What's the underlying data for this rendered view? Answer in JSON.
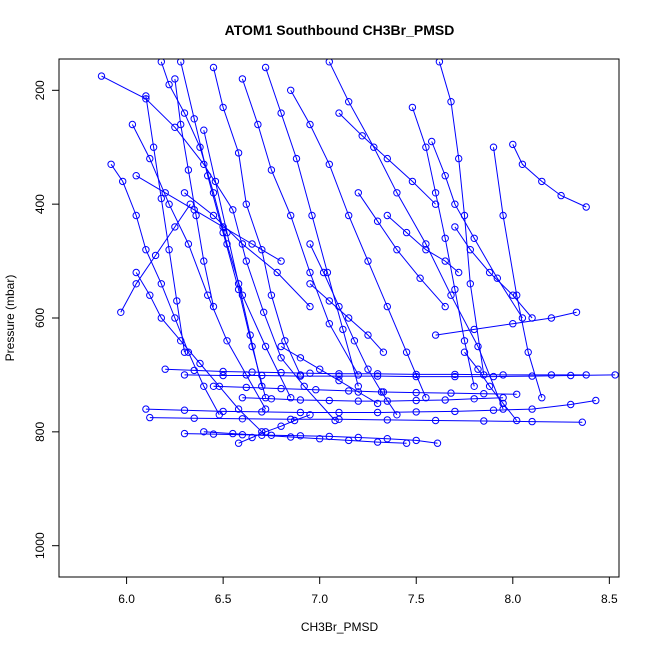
{
  "chart_data": {
    "type": "line",
    "title": "ATOM1 Southbound CH3Br_PMSD",
    "xlabel": "CH3Br_PMSD",
    "ylabel": "Pressure (mbar)",
    "xlim": [
      5.65,
      8.55
    ],
    "ylim": [
      1055,
      145
    ],
    "y_reversed": true,
    "x_ticks": [
      6.0,
      6.5,
      7.0,
      7.5,
      8.0,
      8.5
    ],
    "y_ticks": [
      200,
      400,
      600,
      800,
      1000
    ],
    "x_tick_labels": [
      "6.0",
      "6.5",
      "7.0",
      "7.5",
      "8.0",
      "8.5"
    ],
    "y_tick_labels": [
      "200",
      "400",
      "600",
      "800",
      "1000"
    ],
    "grid": false,
    "legend": "none",
    "series_color": "#0000ff",
    "series": [
      {
        "x": [
          5.87,
          6.1,
          6.25,
          6.4,
          6.55,
          6.62,
          6.71,
          6.8,
          6.92,
          7.08
        ],
        "y": [
          175,
          215,
          265,
          330,
          410,
          500,
          590,
          670,
          720,
          780
        ]
      },
      {
        "x": [
          6.18,
          6.22,
          6.3,
          6.38,
          6.45,
          6.52,
          6.6,
          6.72,
          6.85
        ],
        "y": [
          150,
          190,
          240,
          300,
          380,
          470,
          560,
          650,
          740
        ]
      },
      {
        "x": [
          6.45,
          6.5,
          6.58,
          6.62,
          6.7,
          6.75,
          6.82,
          6.9
        ],
        "y": [
          160,
          230,
          310,
          400,
          480,
          560,
          640,
          700
        ]
      },
      {
        "x": [
          5.92,
          5.98,
          6.05,
          6.1,
          6.18,
          6.25,
          6.32,
          6.4,
          6.48
        ],
        "y": [
          330,
          360,
          420,
          480,
          540,
          600,
          660,
          720,
          770
        ]
      },
      {
        "x": [
          6.6,
          6.68,
          6.75,
          6.85,
          6.95,
          7.05,
          7.2
        ],
        "y": [
          180,
          260,
          340,
          420,
          520,
          610,
          700
        ]
      },
      {
        "x": [
          6.85,
          6.95,
          7.05,
          7.15,
          7.25,
          7.35,
          7.45,
          7.55
        ],
        "y": [
          200,
          260,
          330,
          420,
          500,
          580,
          660,
          740
        ]
      },
      {
        "x": [
          7.05,
          7.15,
          7.28,
          7.4,
          7.55,
          7.68,
          7.82,
          7.95
        ],
        "y": [
          150,
          220,
          300,
          380,
          470,
          560,
          650,
          760
        ]
      },
      {
        "x": [
          7.48,
          7.55,
          7.6,
          7.65,
          7.7,
          7.75,
          7.8
        ],
        "y": [
          230,
          300,
          380,
          460,
          550,
          640,
          720
        ]
      },
      {
        "x": [
          7.62,
          7.68,
          7.72,
          7.75,
          7.78,
          7.85
        ],
        "y": [
          150,
          220,
          320,
          420,
          540,
          700
        ]
      },
      {
        "x": [
          6.03,
          6.12,
          6.22,
          6.32,
          6.42,
          6.52,
          6.62,
          6.72
        ],
        "y": [
          260,
          320,
          400,
          470,
          560,
          640,
          700,
          760
        ]
      },
      {
        "x": [
          6.05,
          6.12,
          6.18,
          6.28,
          6.38,
          6.48,
          6.58,
          6.7
        ],
        "y": [
          520,
          560,
          600,
          640,
          680,
          720,
          760,
          800
        ]
      },
      {
        "x": [
          6.28,
          6.35,
          6.42,
          6.5,
          6.58,
          6.65,
          6.72
        ],
        "y": [
          150,
          250,
          350,
          450,
          550,
          650,
          740
        ]
      },
      {
        "x": [
          6.72,
          6.8,
          6.88,
          6.96,
          7.04,
          7.12,
          7.2
        ],
        "y": [
          160,
          240,
          320,
          420,
          520,
          620,
          720
        ]
      },
      {
        "x": [
          6.4,
          6.46,
          6.52,
          6.58,
          6.64,
          6.7
        ],
        "y": [
          270,
          360,
          450,
          540,
          630,
          720
        ]
      },
      {
        "x": [
          7.9,
          7.95,
          8.02,
          8.08,
          8.15
        ],
        "y": [
          300,
          420,
          560,
          660,
          740
        ]
      },
      {
        "x": [
          6.95,
          7.02,
          7.1,
          7.18,
          7.25,
          7.32,
          7.4
        ],
        "y": [
          470,
          520,
          580,
          640,
          690,
          730,
          770
        ]
      },
      {
        "x": [
          6.3,
          6.45,
          6.6,
          6.78,
          6.95
        ],
        "y": [
          380,
          420,
          470,
          520,
          580
        ]
      },
      {
        "x": [
          6.2,
          6.35,
          6.5,
          6.65,
          6.8,
          6.95,
          7.1,
          7.3,
          7.5,
          7.7,
          7.95,
          8.2,
          8.38
        ],
        "y": [
          690,
          692,
          694,
          695,
          696,
          697,
          698,
          698,
          699,
          699,
          700,
          700,
          700
        ]
      },
      {
        "x": [
          6.3,
          6.5,
          6.7,
          6.9,
          7.1,
          7.3,
          7.5,
          7.7,
          7.9,
          8.1,
          8.3,
          8.53
        ],
        "y": [
          700,
          701,
          701,
          702,
          702,
          702,
          703,
          703,
          703,
          702,
          701,
          700
        ]
      },
      {
        "x": [
          6.1,
          6.3,
          6.5,
          6.7,
          6.9,
          7.1,
          7.3,
          7.5,
          7.7,
          7.9,
          8.1,
          8.3,
          8.43
        ],
        "y": [
          760,
          762,
          764,
          765,
          766,
          766,
          766,
          765,
          764,
          762,
          760,
          752,
          745
        ]
      },
      {
        "x": [
          6.12,
          6.35,
          6.6,
          6.85,
          7.1,
          7.35,
          7.6,
          7.85,
          8.1,
          8.36
        ],
        "y": [
          775,
          776,
          777,
          778,
          778,
          779,
          780,
          781,
          782,
          783
        ]
      },
      {
        "x": [
          6.3,
          6.45,
          6.6,
          6.75,
          6.9,
          7.05,
          7.2,
          7.35,
          7.5,
          7.61
        ],
        "y": [
          803,
          804,
          805,
          806,
          807,
          808,
          810,
          812,
          815,
          820
        ]
      },
      {
        "x": [
          6.4,
          6.55,
          6.7,
          6.85,
          7.0,
          7.15,
          7.3,
          7.45
        ],
        "y": [
          800,
          803,
          806,
          809,
          812,
          815,
          818,
          820
        ]
      },
      {
        "x": [
          6.6,
          6.75,
          6.9,
          7.05,
          7.2,
          7.35,
          7.5,
          7.65,
          7.8,
          7.95
        ],
        "y": [
          740,
          742,
          744,
          745,
          746,
          746,
          745,
          744,
          742,
          740
        ]
      },
      {
        "x": [
          6.45,
          6.62,
          6.8,
          6.98,
          7.15,
          7.33,
          7.5,
          7.68,
          7.85,
          8.02
        ],
        "y": [
          720,
          722,
          724,
          726,
          728,
          730,
          731,
          732,
          733,
          734
        ]
      },
      {
        "x": [
          5.97,
          6.05,
          6.15,
          6.25,
          6.33
        ],
        "y": [
          590,
          540,
          490,
          440,
          400
        ]
      },
      {
        "x": [
          8.0,
          8.05,
          8.15,
          8.25,
          8.38
        ],
        "y": [
          295,
          330,
          360,
          385,
          405
        ]
      },
      {
        "x": [
          7.35,
          7.45,
          7.55,
          7.65,
          7.72
        ],
        "y": [
          420,
          450,
          480,
          500,
          520
        ]
      },
      {
        "x": [
          7.58,
          7.65,
          7.7,
          7.8,
          7.92,
          8.05
        ],
        "y": [
          290,
          350,
          400,
          460,
          530,
          600
        ]
      },
      {
        "x": [
          6.95,
          7.05,
          7.15,
          7.25,
          7.33
        ],
        "y": [
          540,
          570,
          600,
          630,
          660
        ]
      },
      {
        "x": [
          7.2,
          7.3,
          7.4,
          7.52,
          7.65
        ],
        "y": [
          380,
          430,
          480,
          530,
          580
        ]
      },
      {
        "x": [
          7.7,
          7.78,
          7.88,
          8.0,
          8.1
        ],
        "y": [
          440,
          480,
          520,
          560,
          600
        ]
      },
      {
        "x": [
          8.33,
          8.2,
          8.0,
          7.8,
          7.6
        ],
        "y": [
          590,
          600,
          610,
          620,
          630
        ]
      },
      {
        "x": [
          6.58,
          6.65,
          6.72,
          6.8,
          6.87,
          6.95
        ],
        "y": [
          820,
          810,
          800,
          790,
          780,
          770
        ]
      },
      {
        "x": [
          6.8,
          6.9,
          7.0,
          7.1,
          7.2,
          7.3
        ],
        "y": [
          650,
          670,
          690,
          710,
          730,
          750
        ]
      },
      {
        "x": [
          6.25,
          6.28,
          6.32,
          6.36,
          6.4,
          6.45
        ],
        "y": [
          180,
          260,
          340,
          420,
          500,
          580
        ]
      },
      {
        "x": [
          6.1,
          6.14,
          6.18,
          6.22,
          6.26,
          6.3
        ],
        "y": [
          210,
          300,
          390,
          480,
          570,
          660
        ]
      },
      {
        "x": [
          7.75,
          7.82,
          7.88,
          7.95,
          8.02
        ],
        "y": [
          660,
          690,
          720,
          750,
          780
        ]
      },
      {
        "x": [
          7.1,
          7.22,
          7.35,
          7.48,
          7.6
        ],
        "y": [
          240,
          280,
          320,
          360,
          400
        ]
      },
      {
        "x": [
          6.05,
          6.2,
          6.35,
          6.5,
          6.65,
          6.8
        ],
        "y": [
          350,
          380,
          410,
          440,
          470,
          500
        ]
      }
    ]
  }
}
